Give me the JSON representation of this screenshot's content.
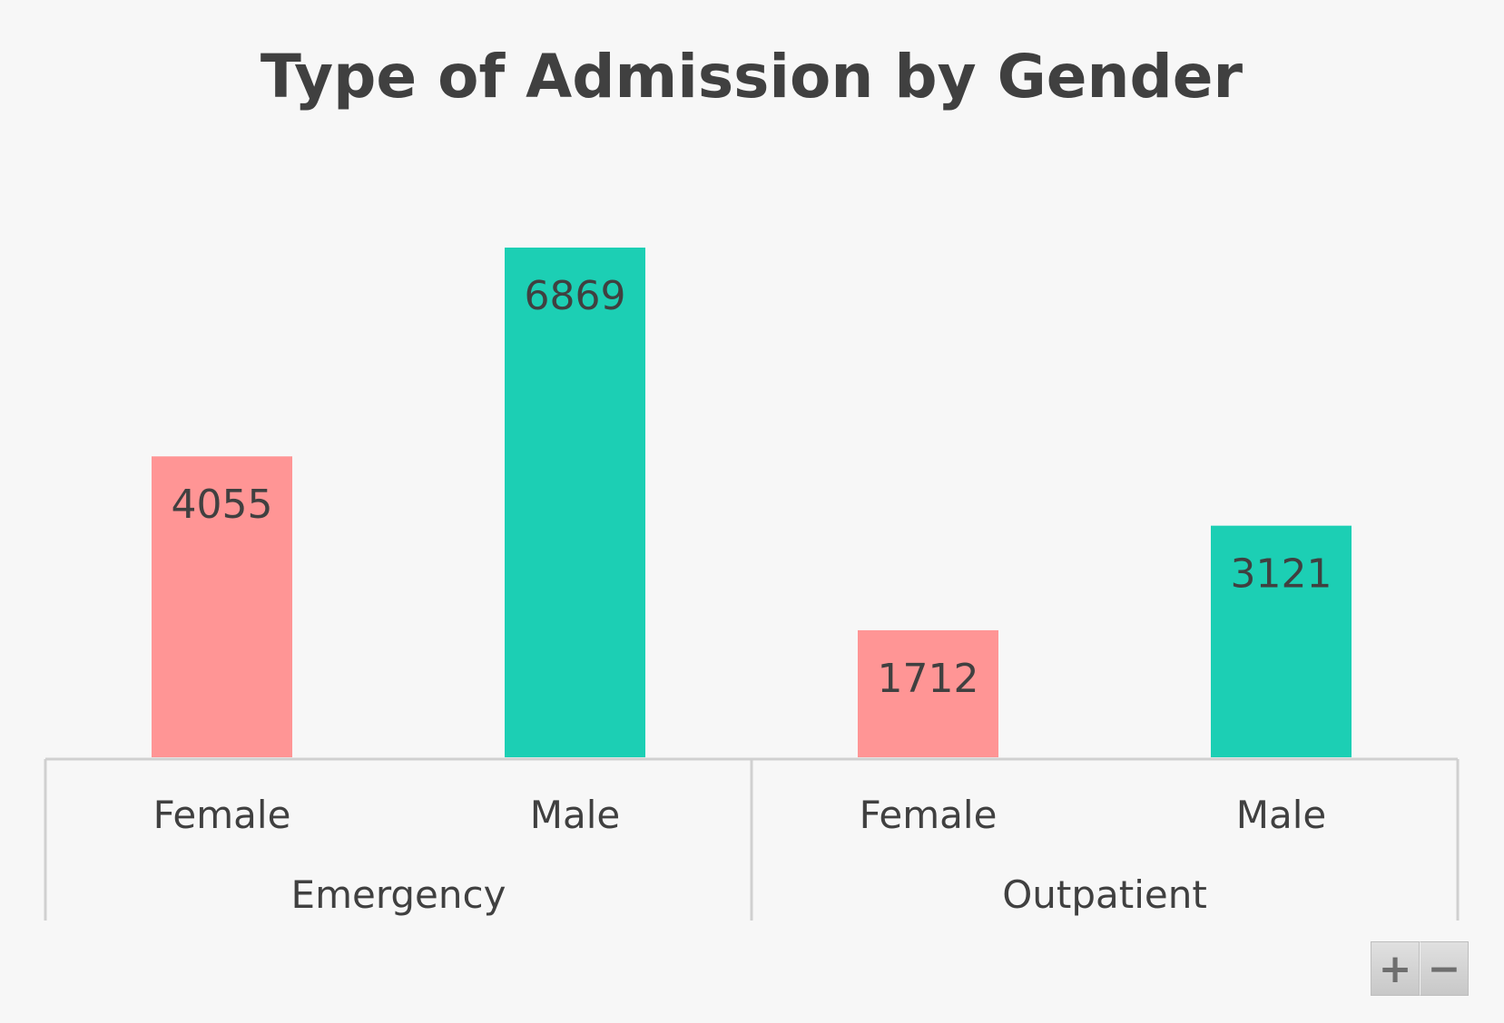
{
  "chart_data": {
    "type": "bar",
    "title": "Type of Admission by Gender",
    "groups": [
      {
        "name": "Emergency",
        "bars": [
          {
            "category": "Female",
            "value": 4055,
            "color": "#ff9595"
          },
          {
            "category": "Male",
            "value": 6869,
            "color": "#1ccfb4"
          }
        ]
      },
      {
        "name": "Outpatient",
        "bars": [
          {
            "category": "Female",
            "value": 1712,
            "color": "#ff9595"
          },
          {
            "category": "Male",
            "value": 3121,
            "color": "#1ccfb4"
          }
        ]
      }
    ],
    "ylim": [
      0,
      6869
    ],
    "grid": false,
    "legend": "none",
    "data_labels": "inside-top"
  },
  "controls": {
    "zoom_in_label": "+",
    "zoom_out_label": "−"
  }
}
